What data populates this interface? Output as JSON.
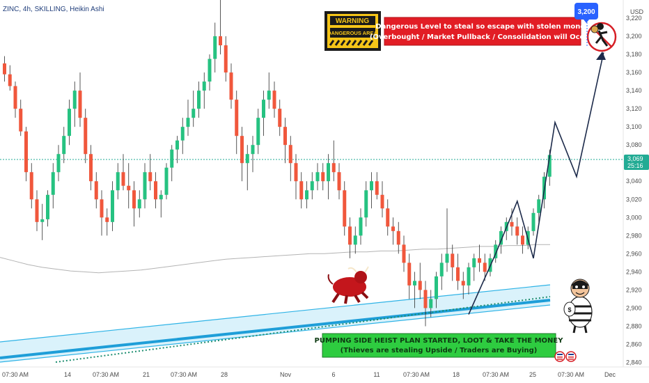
{
  "chart_data": {
    "type": "candlestick",
    "symbol": "ZINC, 4h, SKILLING, Heikin Ashi",
    "currency": "USD",
    "ylim": [
      2835,
      3240
    ],
    "y_ticks": [
      3220,
      3200,
      3180,
      3160,
      3140,
      3120,
      3100,
      3080,
      3060,
      3040,
      3020,
      3000,
      2980,
      2960,
      2940,
      2920,
      2900,
      2880,
      2860,
      2840
    ],
    "x_labels": [
      "07:30 AM",
      "14",
      "07:30 AM",
      "21",
      "07:30 AM",
      "28",
      "Nov",
      "6",
      "11",
      "07:30 AM",
      "18",
      "07:30 AM",
      "25",
      "07:30 AM",
      "Dec"
    ],
    "current_price": "3,069",
    "countdown": "25:16",
    "target_price": "3,200",
    "candles": [
      [
        3170,
        3178,
        3150,
        3158
      ],
      [
        3158,
        3168,
        3140,
        3145
      ],
      [
        3145,
        3150,
        3110,
        3120
      ],
      [
        3120,
        3130,
        3090,
        3095
      ],
      [
        3095,
        3100,
        3040,
        3050
      ],
      [
        3050,
        3060,
        3010,
        3020
      ],
      [
        3020,
        3030,
        2985,
        2995
      ],
      [
        2995,
        3015,
        2975,
        2998
      ],
      [
        2998,
        3030,
        2990,
        3025
      ],
      [
        3025,
        3060,
        3010,
        3050
      ],
      [
        3050,
        3080,
        3040,
        3070
      ],
      [
        3070,
        3100,
        3060,
        3090
      ],
      [
        3090,
        3130,
        3080,
        3120
      ],
      [
        3120,
        3150,
        3100,
        3140
      ],
      [
        3140,
        3160,
        3100,
        3110
      ],
      [
        3110,
        3120,
        3060,
        3070
      ],
      [
        3070,
        3080,
        3030,
        3040
      ],
      [
        3040,
        3050,
        3010,
        3020
      ],
      [
        3020,
        3030,
        2980,
        3000
      ],
      [
        3000,
        3010,
        2980,
        2995
      ],
      [
        2995,
        3040,
        2985,
        3030
      ],
      [
        3030,
        3060,
        3020,
        3050
      ],
      [
        3050,
        3070,
        3030,
        3035
      ],
      [
        3035,
        3060,
        3010,
        3030
      ],
      [
        3030,
        3040,
        2990,
        3010
      ],
      [
        3010,
        3030,
        3000,
        3020
      ],
      [
        3020,
        3060,
        3010,
        3050
      ],
      [
        3050,
        3070,
        3030,
        3040
      ],
      [
        3040,
        3050,
        3010,
        3020
      ],
      [
        3020,
        3030,
        3000,
        3025
      ],
      [
        3025,
        3060,
        3020,
        3055
      ],
      [
        3055,
        3080,
        3040,
        3075
      ],
      [
        3075,
        3090,
        3060,
        3085
      ],
      [
        3085,
        3110,
        3070,
        3100
      ],
      [
        3100,
        3130,
        3090,
        3110
      ],
      [
        3110,
        3140,
        3100,
        3120
      ],
      [
        3120,
        3150,
        3110,
        3140
      ],
      [
        3140,
        3160,
        3120,
        3150
      ],
      [
        3150,
        3180,
        3140,
        3175
      ],
      [
        3175,
        3215,
        3160,
        3200
      ],
      [
        3200,
        3245,
        3180,
        3190
      ],
      [
        3190,
        3200,
        3150,
        3160
      ],
      [
        3160,
        3170,
        3120,
        3130
      ],
      [
        3130,
        3140,
        3070,
        3090
      ],
      [
        3090,
        3100,
        3040,
        3060
      ],
      [
        3060,
        3080,
        3030,
        3070
      ],
      [
        3070,
        3090,
        3050,
        3080
      ],
      [
        3080,
        3120,
        3070,
        3110
      ],
      [
        3110,
        3140,
        3090,
        3130
      ],
      [
        3130,
        3160,
        3120,
        3140
      ],
      [
        3140,
        3150,
        3110,
        3120
      ],
      [
        3120,
        3130,
        3090,
        3100
      ],
      [
        3100,
        3110,
        3060,
        3080
      ],
      [
        3080,
        3090,
        3040,
        3060
      ],
      [
        3060,
        3070,
        3020,
        3040
      ],
      [
        3040,
        3050,
        3010,
        3020
      ],
      [
        3020,
        3040,
        3010,
        3030
      ],
      [
        3030,
        3050,
        3020,
        3040
      ],
      [
        3040,
        3060,
        3030,
        3050
      ],
      [
        3050,
        3060,
        3030,
        3040
      ],
      [
        3040,
        3070,
        3020,
        3060
      ],
      [
        3060,
        3085,
        3040,
        3050
      ],
      [
        3050,
        3060,
        3020,
        3030
      ],
      [
        3030,
        3040,
        2980,
        2990
      ],
      [
        2990,
        3000,
        2955,
        2970
      ],
      [
        2970,
        2990,
        2960,
        2980
      ],
      [
        2980,
        3010,
        2970,
        3000
      ],
      [
        3000,
        3040,
        2990,
        3030
      ],
      [
        3030,
        3050,
        3010,
        3040
      ],
      [
        3040,
        3050,
        3020,
        3025
      ],
      [
        3025,
        3040,
        3000,
        3010
      ],
      [
        3010,
        3020,
        2980,
        2990
      ],
      [
        2990,
        3000,
        2970,
        2985
      ],
      [
        2985,
        2995,
        2960,
        2970
      ],
      [
        2970,
        2980,
        2940,
        2950
      ],
      [
        2950,
        2960,
        2910,
        2925
      ],
      [
        2925,
        2940,
        2900,
        2930
      ],
      [
        2930,
        2950,
        2910,
        2920
      ],
      [
        2920,
        2930,
        2880,
        2900
      ],
      [
        2900,
        2920,
        2890,
        2910
      ],
      [
        2910,
        2940,
        2900,
        2935
      ],
      [
        2935,
        2960,
        2920,
        2950
      ],
      [
        2950,
        3010,
        2940,
        2960
      ],
      [
        2960,
        2970,
        2930,
        2945
      ],
      [
        2945,
        2960,
        2920,
        2930
      ],
      [
        2930,
        2940,
        2910,
        2925
      ],
      [
        2925,
        2950,
        2915,
        2945
      ],
      [
        2945,
        2960,
        2930,
        2955
      ],
      [
        2955,
        2970,
        2940,
        2950
      ],
      [
        2950,
        2960,
        2930,
        2940
      ],
      [
        2940,
        2960,
        2935,
        2955
      ],
      [
        2955,
        2975,
        2950,
        2970
      ],
      [
        2970,
        2990,
        2960,
        2985
      ],
      [
        2985,
        3000,
        2975,
        2995
      ],
      [
        2995,
        3010,
        2980,
        2990
      ],
      [
        2990,
        3000,
        2970,
        2980
      ],
      [
        2980,
        2990,
        2960,
        2970
      ],
      [
        2970,
        2990,
        2965,
        2985
      ],
      [
        2985,
        3010,
        2980,
        3005
      ],
      [
        3005,
        3025,
        2995,
        3020
      ],
      [
        3020,
        3050,
        3010,
        3045
      ],
      [
        3045,
        3075,
        3035,
        3069
      ]
    ],
    "moving_average": [
      2956,
      2952,
      2948,
      2945,
      2943,
      2941,
      2940,
      2939,
      2940,
      2941,
      2942,
      2944,
      2946,
      2948,
      2950,
      2952,
      2954,
      2955,
      2956,
      2957,
      2958,
      2959,
      2960,
      2960,
      2961,
      2962,
      2962,
      2963,
      2963,
      2964,
      2965,
      2965,
      2966,
      2967,
      2968,
      2968,
      2969,
      2969,
      2970,
      2970
    ],
    "projection": [
      [
        86,
        2893
      ],
      [
        91,
        2960
      ],
      [
        95,
        3018
      ],
      [
        98,
        2955
      ],
      [
        102,
        3105
      ],
      [
        106,
        3045
      ],
      [
        111,
        3182
      ]
    ],
    "annotations": {
      "warning_sign_top": "WARNING",
      "warning_sign_bottom": "DANGEROUS AREA",
      "danger_line1": "Dangerous Level to steal so escape with stolen money",
      "danger_line2": "(Overbought / Market Pullback / Consolidation will Occur)",
      "heist_line1": "PUMPING SIDE HEIST PLAN STARTED, LOOT & TAKE THE MONEY",
      "heist_line2": "(Thieves are stealing Upside / Traders are Buying)"
    },
    "colors": {
      "up": "#26c281",
      "down": "#f0573c",
      "ma": "#b3b3b3",
      "trend": "#1e9ed8",
      "projection": "#1c2a4a",
      "danger_box": "#e21d25",
      "heist_box": "#2ecc40",
      "price_tag": "#22ab94",
      "target_tag": "#2962ff"
    }
  }
}
